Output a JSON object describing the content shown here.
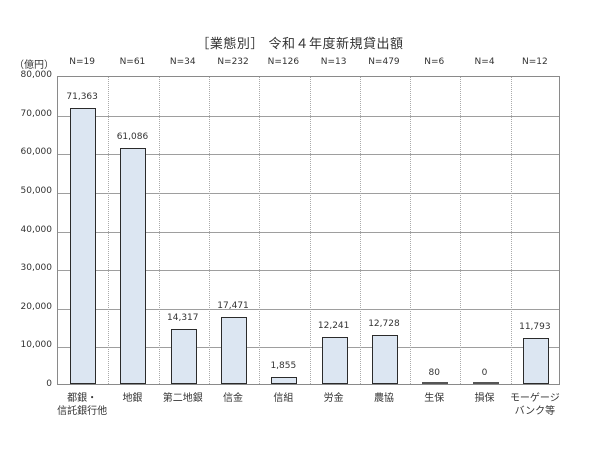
{
  "chart_data": {
    "type": "bar",
    "title": "［業態別］ 令和４年度新規貸出額",
    "ylabel": "（億円）",
    "xlabel": "",
    "ylim": [
      0,
      80000
    ],
    "yticks": [
      "0",
      "10,000",
      "20,000",
      "30,000",
      "40,000",
      "50,000",
      "60,000",
      "70,000",
      "80,000"
    ],
    "grid": true,
    "legend": null,
    "categories": [
      "都銀・\n信託銀行他",
      "地銀",
      "第二地銀",
      "信金",
      "信組",
      "労金",
      "農協",
      "生保",
      "損保",
      "モーゲージ\nバンク等"
    ],
    "sample_sizes": [
      "N=19",
      "N=61",
      "N=34",
      "N=232",
      "N=126",
      "N=13",
      "N=479",
      "N=6",
      "N=4",
      "N=12"
    ],
    "values": [
      71363,
      61086,
      14317,
      17471,
      1855,
      12241,
      12728,
      80,
      0,
      11793
    ],
    "value_labels": [
      "71,363",
      "61,086",
      "14,317",
      "17,471",
      "1,855",
      "12,241",
      "12,728",
      "80",
      "0",
      "11,793"
    ]
  },
  "colors": {
    "bar_fill": "#dce6f2",
    "bar_border": "#2b2b2b",
    "grid": "#9e9e9e",
    "frame": "#8a8a8a"
  }
}
